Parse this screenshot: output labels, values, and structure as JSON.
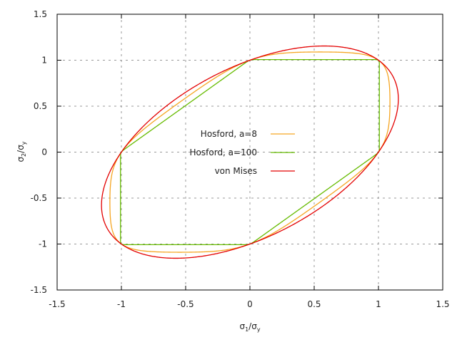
{
  "chart_data": {
    "type": "line",
    "title": "",
    "xlabel": "σ1/σy",
    "ylabel": "σ2/σy",
    "xlim": [
      -1.5,
      1.5
    ],
    "ylim": [
      -1.5,
      1.5
    ],
    "xticks": [
      -1.5,
      -1,
      -0.5,
      0,
      0.5,
      1,
      1.5
    ],
    "yticks": [
      -1.5,
      -1,
      -0.5,
      0,
      0.5,
      1,
      1.5
    ],
    "xtick_labels": [
      "-1.5",
      "-1",
      "-0.5",
      "0",
      "0.5",
      "1",
      "1.5"
    ],
    "ytick_labels": [
      "-1.5",
      "-1",
      "-0.5",
      "0",
      "0.5",
      "1",
      "1.5"
    ],
    "grid": true,
    "legend_position": "center-left",
    "series": [
      {
        "name": "Hosford, a=8",
        "color": "#f5a623",
        "curve": "hosford",
        "exponent": 8
      },
      {
        "name": "Hosford, a=100",
        "color": "#66bb00",
        "curve": "hosford",
        "exponent": 100
      },
      {
        "name": "von Mises",
        "color": "#e30000",
        "curve": "von_mises"
      }
    ]
  }
}
